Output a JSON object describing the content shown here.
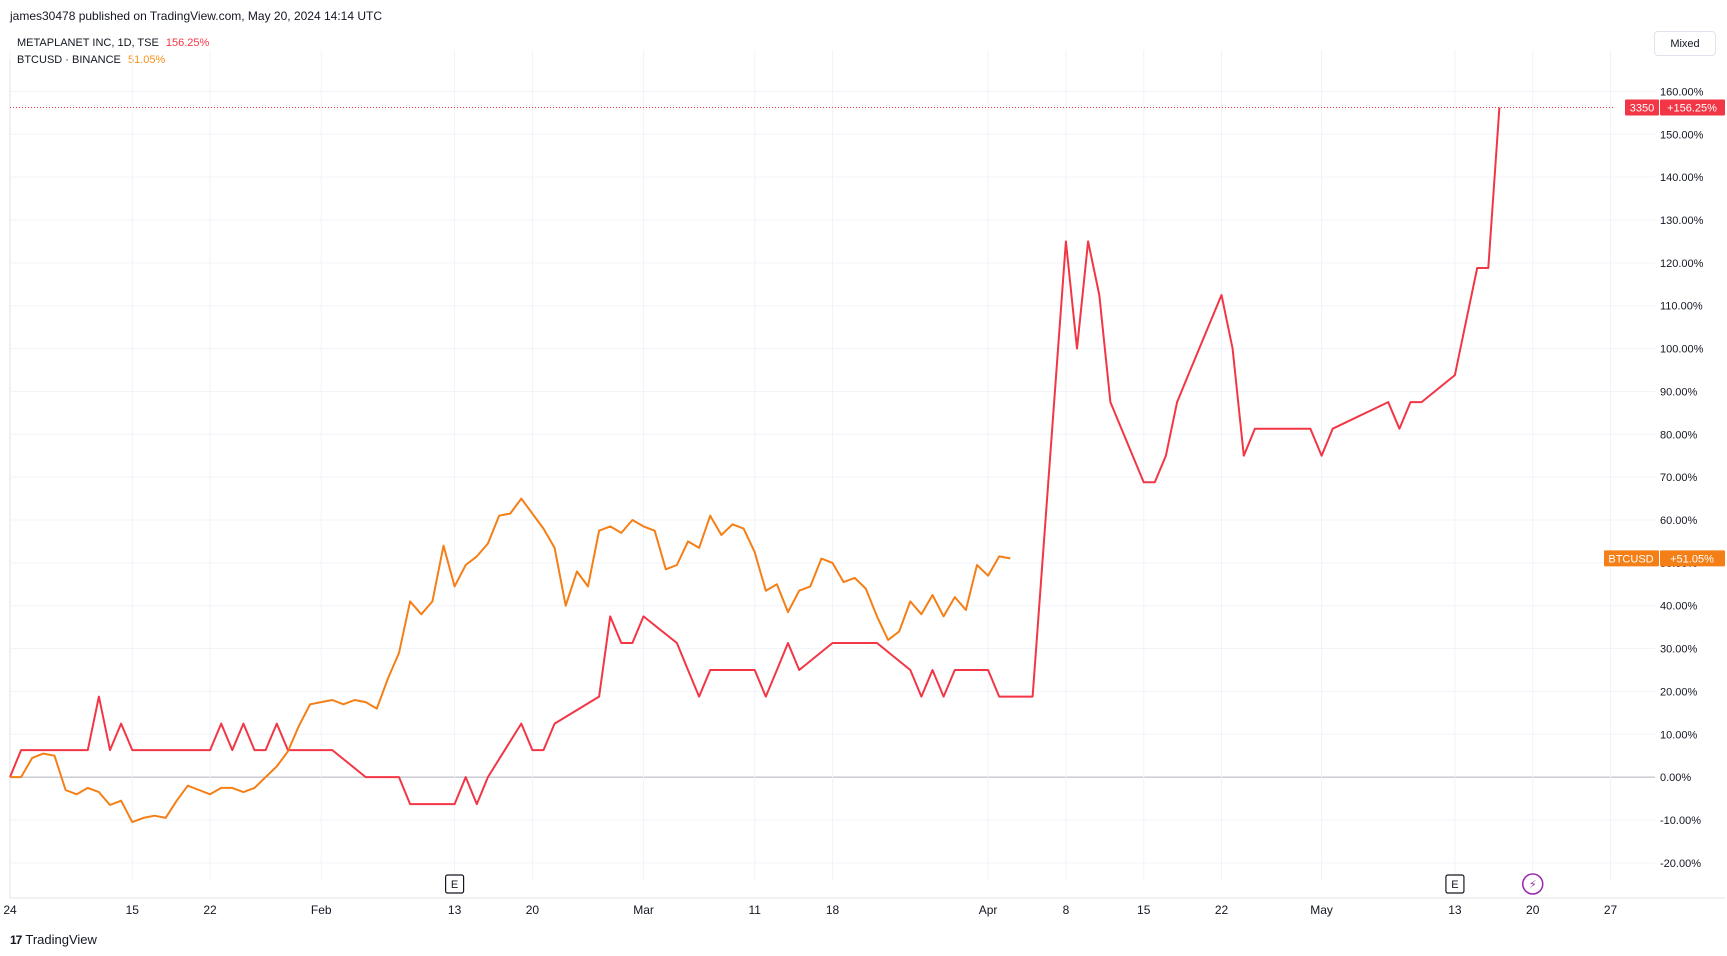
{
  "header": {
    "published": "james30478 published on TradingView.com, May 20, 2024 14:14 UTC"
  },
  "legend": [
    {
      "name": "METAPLANET INC, 1D, TSE",
      "value": "156.25%",
      "color": "#f23645"
    },
    {
      "name": "BTCUSD · BINANCE",
      "value": "51.05%",
      "color": "#f7931a"
    }
  ],
  "toolbar": {
    "scale_mode": "Mixed"
  },
  "footer": {
    "brand": "TradingView",
    "logo": "17"
  },
  "colors": {
    "metaplanet": "#f23645",
    "btcusd": "#f57f17",
    "grid": "#f0f3fa",
    "axis_text": "#131722"
  },
  "chart_data": {
    "type": "line",
    "x_start": "2024-01-04",
    "x_end": "2024-05-20",
    "xlim": [
      "2024-01-04",
      "2024-05-31"
    ],
    "ylim": [
      -24,
      165
    ],
    "grid": true,
    "y_ticks": [
      160,
      150,
      140,
      130,
      120,
      110,
      100,
      90,
      80,
      70,
      60,
      50,
      40,
      30,
      20,
      10,
      0,
      -10,
      -20
    ],
    "y_tick_labels": [
      "160.00%",
      "150.00%",
      "140.00%",
      "130.00%",
      "120.00%",
      "110.00%",
      "100.00%",
      "90.00%",
      "80.00%",
      "70.00%",
      "60.00%",
      "50.00%",
      "40.00%",
      "30.00%",
      "20.00%",
      "10.00%",
      "0.00%",
      "-10.00%",
      "-20.00%"
    ],
    "x_ticks": [
      {
        "label": "24",
        "date": "2024-01-04"
      },
      {
        "label": "15",
        "date": "2024-01-15"
      },
      {
        "label": "22",
        "date": "2024-01-22"
      },
      {
        "label": "Feb",
        "date": "2024-02-01"
      },
      {
        "label": "13",
        "date": "2024-02-13"
      },
      {
        "label": "20",
        "date": "2024-02-20"
      },
      {
        "label": "Mar",
        "date": "2024-03-01"
      },
      {
        "label": "11",
        "date": "2024-03-11"
      },
      {
        "label": "18",
        "date": "2024-03-18"
      },
      {
        "label": "Apr",
        "date": "2024-04-01"
      },
      {
        "label": "8",
        "date": "2024-04-08"
      },
      {
        "label": "15",
        "date": "2024-04-15"
      },
      {
        "label": "22",
        "date": "2024-04-22"
      },
      {
        "label": "May",
        "date": "2024-05-01"
      },
      {
        "label": "13",
        "date": "2024-05-13"
      },
      {
        "label": "20",
        "date": "2024-05-20"
      },
      {
        "label": "27",
        "date": "2024-05-27"
      }
    ],
    "events": [
      {
        "label": "E",
        "date": "2024-02-13"
      },
      {
        "label": "E",
        "date": "2024-05-13"
      },
      {
        "label": "⚡",
        "date": "2024-05-20"
      }
    ],
    "last_price_label": {
      "price": "3350",
      "change": "+156.25%",
      "value": 156.25
    },
    "btc_label": {
      "name": "BTCUSD",
      "change": "+51.05%",
      "value": 51.05
    },
    "series": [
      {
        "name": "METAPLANET INC, 1D, TSE",
        "color": "#f23645",
        "points": [
          [
            "2024-01-04",
            0
          ],
          [
            "2024-01-05",
            6.3
          ],
          [
            "2024-01-09",
            6.3
          ],
          [
            "2024-01-10",
            6.3
          ],
          [
            "2024-01-11",
            6.3
          ],
          [
            "2024-01-12",
            18.8
          ],
          [
            "2024-01-13",
            6.3
          ],
          [
            "2024-01-14",
            12.5
          ],
          [
            "2024-01-15",
            6.3
          ],
          [
            "2024-01-16",
            6.3
          ],
          [
            "2024-01-17",
            6.3
          ],
          [
            "2024-01-18",
            6.3
          ],
          [
            "2024-01-19",
            6.3
          ],
          [
            "2024-01-22",
            6.3
          ],
          [
            "2024-01-23",
            12.5
          ],
          [
            "2024-01-24",
            6.3
          ],
          [
            "2024-01-25",
            12.5
          ],
          [
            "2024-01-26",
            6.3
          ],
          [
            "2024-01-27",
            6.3
          ],
          [
            "2024-01-28",
            12.5
          ],
          [
            "2024-01-29",
            6.3
          ],
          [
            "2024-01-30",
            6.3
          ],
          [
            "2024-01-31",
            6.3
          ],
          [
            "2024-02-01",
            6.3
          ],
          [
            "2024-02-02",
            6.3
          ],
          [
            "2024-02-05",
            0
          ],
          [
            "2024-02-06",
            0
          ],
          [
            "2024-02-07",
            0
          ],
          [
            "2024-02-08",
            0
          ],
          [
            "2024-02-09",
            -6.3
          ],
          [
            "2024-02-13",
            -6.3
          ],
          [
            "2024-02-14",
            0
          ],
          [
            "2024-02-15",
            -6.3
          ],
          [
            "2024-02-16",
            0
          ],
          [
            "2024-02-19",
            12.5
          ],
          [
            "2024-02-20",
            6.3
          ],
          [
            "2024-02-21",
            6.3
          ],
          [
            "2024-02-22",
            12.5
          ],
          [
            "2024-02-26",
            18.8
          ],
          [
            "2024-02-27",
            37.5
          ],
          [
            "2024-02-28",
            31.3
          ],
          [
            "2024-02-29",
            31.3
          ],
          [
            "2024-03-01",
            37.5
          ],
          [
            "2024-03-04",
            31.3
          ],
          [
            "2024-03-05",
            25
          ],
          [
            "2024-03-06",
            18.8
          ],
          [
            "2024-03-07",
            25
          ],
          [
            "2024-03-08",
            25
          ],
          [
            "2024-03-11",
            25
          ],
          [
            "2024-03-12",
            18.8
          ],
          [
            "2024-03-13",
            25
          ],
          [
            "2024-03-14",
            31.3
          ],
          [
            "2024-03-15",
            25
          ],
          [
            "2024-03-18",
            31.3
          ],
          [
            "2024-03-19",
            31.3
          ],
          [
            "2024-03-21",
            31.3
          ],
          [
            "2024-03-22",
            31.3
          ],
          [
            "2024-03-25",
            25
          ],
          [
            "2024-03-26",
            18.8
          ],
          [
            "2024-03-27",
            25
          ],
          [
            "2024-03-28",
            18.8
          ],
          [
            "2024-03-29",
            25
          ],
          [
            "2024-04-01",
            25
          ],
          [
            "2024-04-02",
            18.8
          ],
          [
            "2024-04-03",
            18.8
          ],
          [
            "2024-04-04",
            18.8
          ],
          [
            "2024-04-05",
            18.8
          ],
          [
            "2024-04-08",
            125
          ],
          [
            "2024-04-09",
            100
          ],
          [
            "2024-04-10",
            125
          ],
          [
            "2024-04-11",
            112.5
          ],
          [
            "2024-04-12",
            87.5
          ],
          [
            "2024-04-15",
            68.8
          ],
          [
            "2024-04-16",
            68.8
          ],
          [
            "2024-04-17",
            75
          ],
          [
            "2024-04-18",
            87.5
          ],
          [
            "2024-04-19",
            93.8
          ],
          [
            "2024-04-22",
            112.5
          ],
          [
            "2024-04-23",
            100
          ],
          [
            "2024-04-24",
            75
          ],
          [
            "2024-04-25",
            81.3
          ],
          [
            "2024-04-26",
            81.3
          ],
          [
            "2024-04-30",
            81.3
          ],
          [
            "2024-05-01",
            75
          ],
          [
            "2024-05-02",
            81.3
          ],
          [
            "2024-05-07",
            87.5
          ],
          [
            "2024-05-08",
            81.3
          ],
          [
            "2024-05-09",
            87.5
          ],
          [
            "2024-05-10",
            87.5
          ],
          [
            "2024-05-13",
            93.8
          ],
          [
            "2024-05-14",
            106.3
          ],
          [
            "2024-05-15",
            118.8
          ],
          [
            "2024-05-16",
            118.8
          ],
          [
            "2024-05-17",
            156.25
          ]
        ]
      },
      {
        "name": "BTCUSD · BINANCE",
        "color": "#f57f17",
        "points": [
          [
            "2024-01-04",
            0
          ],
          [
            "2024-01-05",
            0
          ],
          [
            "2024-01-06",
            4.5
          ],
          [
            "2024-01-07",
            5.5
          ],
          [
            "2024-01-08",
            5
          ],
          [
            "2024-01-09",
            -3
          ],
          [
            "2024-01-10",
            -4
          ],
          [
            "2024-01-11",
            -2.5
          ],
          [
            "2024-01-12",
            -3.5
          ],
          [
            "2024-01-13",
            -6.5
          ],
          [
            "2024-01-14",
            -5.5
          ],
          [
            "2024-01-15",
            -10.5
          ],
          [
            "2024-01-16",
            -9.5
          ],
          [
            "2024-01-17",
            -9
          ],
          [
            "2024-01-18",
            -9.5
          ],
          [
            "2024-01-19",
            -5.5
          ],
          [
            "2024-01-20",
            -2
          ],
          [
            "2024-01-21",
            -3
          ],
          [
            "2024-01-22",
            -4
          ],
          [
            "2024-01-23",
            -2.5
          ],
          [
            "2024-01-24",
            -2.5
          ],
          [
            "2024-01-25",
            -3.5
          ],
          [
            "2024-01-26",
            -2.5
          ],
          [
            "2024-01-27",
            0
          ],
          [
            "2024-01-28",
            2.5
          ],
          [
            "2024-01-29",
            6
          ],
          [
            "2024-01-30",
            12
          ],
          [
            "2024-01-31",
            17
          ],
          [
            "2024-02-01",
            17.5
          ],
          [
            "2024-02-02",
            18
          ],
          [
            "2024-02-03",
            17
          ],
          [
            "2024-02-04",
            18
          ],
          [
            "2024-02-05",
            17.5
          ],
          [
            "2024-02-06",
            16
          ],
          [
            "2024-02-07",
            23
          ],
          [
            "2024-02-08",
            29
          ],
          [
            "2024-02-09",
            41
          ],
          [
            "2024-02-10",
            38
          ],
          [
            "2024-02-11",
            41
          ],
          [
            "2024-02-12",
            54
          ],
          [
            "2024-02-13",
            44.5
          ],
          [
            "2024-02-14",
            49.5
          ],
          [
            "2024-02-15",
            51.5
          ],
          [
            "2024-02-16",
            54.5
          ],
          [
            "2024-02-17",
            61
          ],
          [
            "2024-02-18",
            61.5
          ],
          [
            "2024-02-19",
            65
          ],
          [
            "2024-02-20",
            61.5
          ],
          [
            "2024-02-21",
            58
          ],
          [
            "2024-02-22",
            53.5
          ],
          [
            "2024-02-23",
            40
          ],
          [
            "2024-02-24",
            48
          ],
          [
            "2024-02-25",
            44.5
          ],
          [
            "2024-02-26",
            57.5
          ],
          [
            "2024-02-27",
            58.5
          ],
          [
            "2024-02-28",
            57
          ],
          [
            "2024-02-29",
            60
          ],
          [
            "2024-03-01",
            58.5
          ],
          [
            "2024-03-02",
            57.5
          ],
          [
            "2024-03-03",
            48.5
          ],
          [
            "2024-03-04",
            49.5
          ],
          [
            "2024-03-05",
            55
          ],
          [
            "2024-03-06",
            53.5
          ],
          [
            "2024-03-07",
            61
          ],
          [
            "2024-03-08",
            56.5
          ],
          [
            "2024-03-09",
            59
          ],
          [
            "2024-03-10",
            58
          ],
          [
            "2024-03-11",
            52.5
          ],
          [
            "2024-03-12",
            43.5
          ],
          [
            "2024-03-13",
            45
          ],
          [
            "2024-03-14",
            38.5
          ],
          [
            "2024-03-15",
            43.5
          ],
          [
            "2024-03-16",
            44.5
          ],
          [
            "2024-03-17",
            51
          ],
          [
            "2024-03-18",
            50
          ],
          [
            "2024-03-19",
            45.5
          ],
          [
            "2024-03-20",
            46.5
          ],
          [
            "2024-03-21",
            44
          ],
          [
            "2024-03-22",
            37.5
          ],
          [
            "2024-03-23",
            32
          ],
          [
            "2024-03-24",
            34
          ],
          [
            "2024-03-25",
            41
          ],
          [
            "2024-03-26",
            38
          ],
          [
            "2024-03-27",
            42.5
          ],
          [
            "2024-03-28",
            37.5
          ],
          [
            "2024-03-29",
            42
          ],
          [
            "2024-03-30",
            39
          ],
          [
            "2024-03-31",
            49.5
          ],
          [
            "2024-04-01",
            47
          ],
          [
            "2024-04-02",
            51.5
          ],
          [
            "2024-04-03",
            51.05
          ]
        ]
      }
    ]
  }
}
